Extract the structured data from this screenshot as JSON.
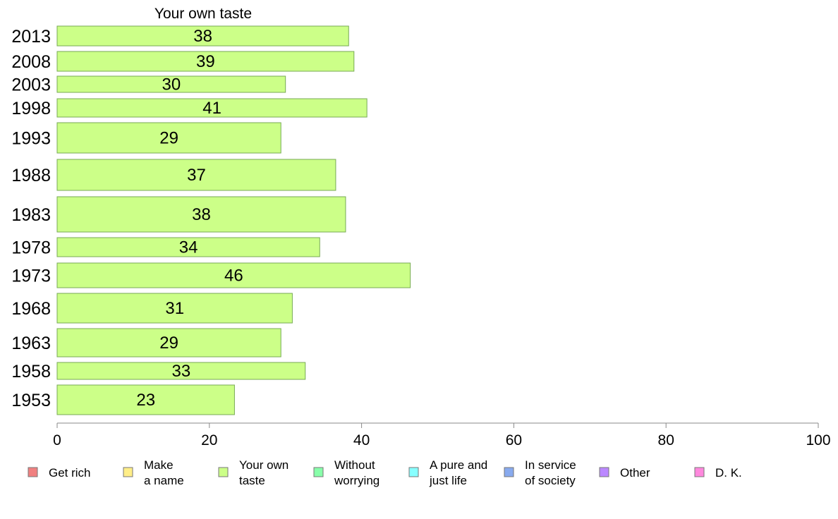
{
  "chart_data": {
    "type": "bar",
    "orientation": "horizontal",
    "title": "Your own taste",
    "categories": [
      "2013",
      "2008",
      "2003",
      "1998",
      "1993",
      "1988",
      "1983",
      "1978",
      "1973",
      "1968",
      "1963",
      "1958",
      "1953"
    ],
    "values": [
      38.3,
      39.0,
      30.0,
      40.7,
      29.4,
      36.6,
      37.9,
      34.5,
      46.4,
      30.9,
      29.4,
      32.6,
      23.3
    ],
    "value_labels": [
      "38",
      "39",
      "30",
      "41",
      "29",
      "37",
      "38",
      "34",
      "46",
      "31",
      "29",
      "33",
      "23"
    ],
    "bar_color": "#ccff88",
    "bar_stroke": "#77aa55",
    "xlim": [
      0,
      100
    ],
    "xticks": [
      "0",
      "20",
      "40",
      "60",
      "80",
      "100"
    ],
    "grid": false,
    "legend": {
      "placement": "bottom",
      "items": [
        {
          "lines": [
            "Get rich"
          ],
          "color": "#f08080"
        },
        {
          "lines": [
            "Make",
            "a name"
          ],
          "color": "#ffee88"
        },
        {
          "lines": [
            "Your own",
            "taste"
          ],
          "color": "#ccff88"
        },
        {
          "lines": [
            "Without",
            "worrying"
          ],
          "color": "#88ffaa"
        },
        {
          "lines": [
            "A pure and",
            "just life"
          ],
          "color": "#88ffff"
        },
        {
          "lines": [
            "In service",
            "of society"
          ],
          "color": "#88aaee"
        },
        {
          "lines": [
            "Other"
          ],
          "color": "#bb88ff"
        },
        {
          "lines": [
            "D. K."
          ],
          "color": "#ff88dd"
        }
      ]
    }
  }
}
